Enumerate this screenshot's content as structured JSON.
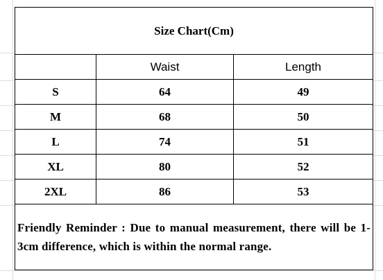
{
  "title": "Size Chart(Cm)",
  "columns": {
    "size": "",
    "waist": "Waist",
    "length": "Length"
  },
  "rows": [
    {
      "size": "S",
      "waist": "64",
      "length": "49"
    },
    {
      "size": "M",
      "waist": "68",
      "length": "50"
    },
    {
      "size": "L",
      "waist": "74",
      "length": "51"
    },
    {
      "size": "XL",
      "waist": "80",
      "length": "52"
    },
    {
      "size": "2XL",
      "waist": "86",
      "length": "53"
    }
  ],
  "reminder": "Friendly Reminder : Due to manual measurement, there will be 1- 3cm difference, which is within the normal range."
}
